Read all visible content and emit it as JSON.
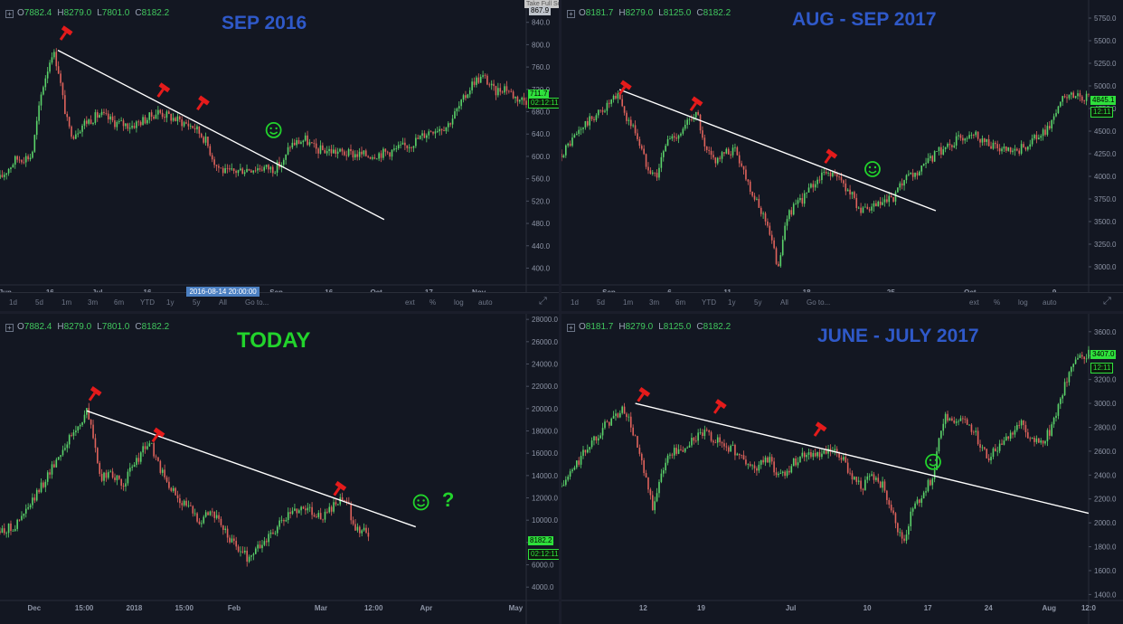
{
  "window_hint": "Take Full Screenshot [Alt-C]",
  "colors": {
    "up": "#5bd36a",
    "down": "#e0635c",
    "trend": "#ffffff",
    "title_blue": "#2f59c9",
    "title_green": "#22d32c",
    "smiley": "#22d32c",
    "hammer": "#e51b1b",
    "axis_text": "#8d94a5"
  },
  "timeframes": [
    "1d",
    "5d",
    "1m",
    "3m",
    "6m",
    "YTD",
    "1y",
    "5y",
    "All",
    "Go to..."
  ],
  "controls": [
    "ext",
    "%",
    "log",
    "auto"
  ],
  "chart_data": [
    {
      "type": "candlestick",
      "panel": "top-left",
      "title": "SEP 2016",
      "ohlc": {
        "o": "7882.4",
        "h": "8279.0",
        "l": "7801.0",
        "c": "8182.2"
      },
      "ylim": [
        370,
        880
      ],
      "yticks": [
        {
          "v": 400,
          "t": "400.0"
        },
        {
          "v": 440,
          "t": "440.0"
        },
        {
          "v": 480,
          "t": "480.0"
        },
        {
          "v": 520,
          "t": "520.0"
        },
        {
          "v": 560,
          "t": "560.0"
        },
        {
          "v": 600,
          "t": "600.0"
        },
        {
          "v": 640,
          "t": "640.0"
        },
        {
          "v": 680,
          "t": "680.0"
        },
        {
          "v": 720,
          "t": "720.0"
        },
        {
          "v": 760,
          "t": "760.0"
        },
        {
          "v": 800,
          "t": "800.0"
        },
        {
          "v": 840,
          "t": "840.0"
        }
      ],
      "xlim": [
        0,
        100
      ],
      "xticks": [
        {
          "x": 1,
          "t": "Jun"
        },
        {
          "x": 9.5,
          "t": "16"
        },
        {
          "x": 18.5,
          "t": "Jul"
        },
        {
          "x": 28,
          "t": "16"
        },
        {
          "x": 52.5,
          "t": "Sep"
        },
        {
          "x": 62.5,
          "t": "16"
        },
        {
          "x": 71.5,
          "t": "Oct"
        },
        {
          "x": 81.5,
          "t": "17"
        },
        {
          "x": 91,
          "t": "Nov"
        }
      ],
      "cursor_date": {
        "x": 42,
        "t": "2016-08-14 20:00:00"
      },
      "price_tags": [
        {
          "v": 711,
          "t": "711.7",
          "dark": false
        },
        {
          "v": 697,
          "t": "02:12:11",
          "dark": true
        }
      ],
      "top_tag": {
        "t": "867.9"
      },
      "path": [
        [
          0,
          560
        ],
        [
          3,
          595
        ],
        [
          6,
          600
        ],
        [
          8,
          720
        ],
        [
          10,
          790
        ],
        [
          11,
          760
        ],
        [
          12,
          700
        ],
        [
          13,
          650
        ],
        [
          14,
          640
        ],
        [
          16,
          660
        ],
        [
          19,
          675
        ],
        [
          22,
          660
        ],
        [
          25,
          655
        ],
        [
          28,
          668
        ],
        [
          30,
          680
        ],
        [
          32,
          672
        ],
        [
          35,
          660
        ],
        [
          37,
          652
        ],
        [
          39,
          630
        ],
        [
          41,
          585
        ],
        [
          43,
          570
        ],
        [
          47,
          578
        ],
        [
          50,
          580
        ],
        [
          52,
          578
        ],
        [
          54,
          590
        ],
        [
          55,
          620
        ],
        [
          58,
          630
        ],
        [
          60,
          612
        ],
        [
          63,
          610
        ],
        [
          66,
          605
        ],
        [
          70,
          602
        ],
        [
          74,
          608
        ],
        [
          78,
          622
        ],
        [
          82,
          648
        ],
        [
          85,
          655
        ],
        [
          88,
          700
        ],
        [
          90,
          735
        ],
        [
          92,
          742
        ],
        [
          94,
          715
        ],
        [
          96,
          725
        ],
        [
          98,
          705
        ],
        [
          100,
          700
        ]
      ],
      "trendline": [
        [
          11,
          790
        ],
        [
          73,
          487
        ]
      ],
      "hammers": [
        [
          12.5,
          822
        ],
        [
          31,
          720
        ],
        [
          38.5,
          697
        ]
      ],
      "smileys": [
        [
          52,
          647
        ]
      ]
    },
    {
      "type": "candlestick",
      "panel": "top-right",
      "title": "AUG - SEP 2017",
      "ohlc": {
        "o": "8181.7",
        "h": "8279.0",
        "l": "8125.0",
        "c": "8182.2"
      },
      "ylim": [
        2800,
        5950
      ],
      "yticks": [
        {
          "v": 3000,
          "t": "3000.0"
        },
        {
          "v": 3250,
          "t": "3250.0"
        },
        {
          "v": 3500,
          "t": "3500.0"
        },
        {
          "v": 3750,
          "t": "3750.0"
        },
        {
          "v": 4000,
          "t": "4000.0"
        },
        {
          "v": 4250,
          "t": "4250.0"
        },
        {
          "v": 4500,
          "t": "4500.0"
        },
        {
          "v": 4750,
          "t": "4750.0"
        },
        {
          "v": 5000,
          "t": "5000.0"
        },
        {
          "v": 5250,
          "t": "5250.0"
        },
        {
          "v": 5500,
          "t": "5500.0"
        },
        {
          "v": 5750,
          "t": "5750.0"
        }
      ],
      "xlim": [
        0,
        100
      ],
      "xticks": [
        {
          "x": 9,
          "t": "Sep"
        },
        {
          "x": 20.5,
          "t": "6"
        },
        {
          "x": 31.5,
          "t": "11"
        },
        {
          "x": 46.5,
          "t": "18"
        },
        {
          "x": 62.5,
          "t": "25"
        },
        {
          "x": 77.5,
          "t": "Oct"
        },
        {
          "x": 93.5,
          "t": "9"
        }
      ],
      "price_tags": [
        {
          "v": 4845,
          "t": "4845.1",
          "dark": false
        },
        {
          "v": 4720,
          "t": "12:11",
          "dark": true
        }
      ],
      "path": [
        [
          0,
          4250
        ],
        [
          4,
          4550
        ],
        [
          8,
          4750
        ],
        [
          11,
          4900
        ],
        [
          12,
          4680
        ],
        [
          14,
          4500
        ],
        [
          16,
          4150
        ],
        [
          18,
          4000
        ],
        [
          20,
          4400
        ],
        [
          23,
          4500
        ],
        [
          25,
          4700
        ],
        [
          26,
          4650
        ],
        [
          27,
          4300
        ],
        [
          29,
          4180
        ],
        [
          31,
          4250
        ],
        [
          33,
          4300
        ],
        [
          35,
          4000
        ],
        [
          37,
          3700
        ],
        [
          39,
          3500
        ],
        [
          40,
          3250
        ],
        [
          41,
          3000
        ],
        [
          43,
          3600
        ],
        [
          45,
          3700
        ],
        [
          47,
          3850
        ],
        [
          49,
          4000
        ],
        [
          51,
          4050
        ],
        [
          53,
          3950
        ],
        [
          55,
          3800
        ],
        [
          57,
          3600
        ],
        [
          59,
          3650
        ],
        [
          61,
          3700
        ],
        [
          63,
          3750
        ],
        [
          65,
          3950
        ],
        [
          68,
          4050
        ],
        [
          71,
          4250
        ],
        [
          75,
          4400
        ],
        [
          78,
          4500
        ],
        [
          80,
          4400
        ],
        [
          83,
          4300
        ],
        [
          86,
          4250
        ],
        [
          89,
          4380
        ],
        [
          92,
          4500
        ],
        [
          95,
          4850
        ],
        [
          98,
          4900
        ],
        [
          100,
          4850
        ]
      ],
      "trendline": [
        [
          11,
          4960
        ],
        [
          71,
          3620
        ]
      ],
      "hammers": [
        [
          12,
          4990
        ],
        [
          25.5,
          4810
        ],
        [
          51,
          4230
        ]
      ],
      "smileys": [
        [
          59,
          4080
        ]
      ]
    },
    {
      "type": "candlestick",
      "panel": "bottom-left",
      "title": "TODAY",
      "ohlc": {
        "o": "7882.4",
        "h": "8279.0",
        "l": "7801.0",
        "c": "8182.2"
      },
      "ylim": [
        2800,
        28500
      ],
      "yticks": [
        {
          "v": 4000,
          "t": "4000.0"
        },
        {
          "v": 6000,
          "t": "6000.0"
        },
        {
          "v": 8000,
          "t": "8000.0"
        },
        {
          "v": 10000,
          "t": "10000.0"
        },
        {
          "v": 12000,
          "t": "12000.0"
        },
        {
          "v": 14000,
          "t": "14000.0"
        },
        {
          "v": 16000,
          "t": "16000.0"
        },
        {
          "v": 18000,
          "t": "18000.0"
        },
        {
          "v": 20000,
          "t": "20000.0"
        },
        {
          "v": 22000,
          "t": "22000.0"
        },
        {
          "v": 24000,
          "t": "24000.0"
        },
        {
          "v": 26000,
          "t": "26000.0"
        },
        {
          "v": 28000,
          "t": "28000.0"
        }
      ],
      "xlim": [
        0,
        100
      ],
      "xticks": [
        {
          "x": 6.5,
          "t": "Dec"
        },
        {
          "x": 16,
          "t": "15:00"
        },
        {
          "x": 25.5,
          "t": "2018"
        },
        {
          "x": 35,
          "t": "15:00"
        },
        {
          "x": 44.5,
          "t": "Feb"
        },
        {
          "x": 61,
          "t": "Mar"
        },
        {
          "x": 71,
          "t": "12:00"
        },
        {
          "x": 81,
          "t": "Apr"
        },
        {
          "x": 98,
          "t": "May"
        }
      ],
      "price_tags": [
        {
          "v": 8182,
          "t": "8182.2",
          "dark": false
        },
        {
          "v": 7000,
          "t": "02:12:11",
          "dark": true
        }
      ],
      "path": [
        [
          0,
          9000
        ],
        [
          3,
          9500
        ],
        [
          6,
          11500
        ],
        [
          9,
          14000
        ],
        [
          12,
          16500
        ],
        [
          15,
          18500
        ],
        [
          16.5,
          19800
        ],
        [
          18,
          17000
        ],
        [
          19,
          13500
        ],
        [
          21,
          14500
        ],
        [
          23,
          13000
        ],
        [
          25,
          14500
        ],
        [
          27,
          16200
        ],
        [
          28.5,
          17000
        ],
        [
          30,
          15000
        ],
        [
          32,
          13000
        ],
        [
          34,
          12000
        ],
        [
          36,
          11000
        ],
        [
          38,
          10000
        ],
        [
          40,
          11000
        ],
        [
          42,
          9500
        ],
        [
          44,
          8000
        ],
        [
          46,
          7200
        ],
        [
          47,
          6600
        ],
        [
          49,
          7500
        ],
        [
          51,
          8500
        ],
        [
          53,
          9500
        ],
        [
          55,
          10500
        ],
        [
          57,
          11200
        ],
        [
          59,
          11000
        ],
        [
          61,
          10200
        ],
        [
          63,
          11000
        ],
        [
          65,
          11800
        ],
        [
          66,
          11500
        ],
        [
          67,
          10000
        ],
        [
          68,
          9000
        ],
        [
          69,
          9500
        ],
        [
          70,
          8500
        ]
      ],
      "trendline": [
        [
          16.5,
          19800
        ],
        [
          79,
          9400
        ]
      ],
      "hammers": [
        [
          18,
          21400
        ],
        [
          30,
          17700
        ],
        [
          64.5,
          12900
        ]
      ],
      "smileys": [
        [
          80,
          11600
        ]
      ],
      "question": {
        "x": 84,
        "v": 11900,
        "t": "?"
      }
    },
    {
      "type": "candlestick",
      "panel": "bottom-right",
      "title": "JUNE - JULY 2017",
      "ohlc": {
        "o": "8181.7",
        "h": "8279.0",
        "l": "8125.0",
        "c": "8182.2"
      },
      "ylim": [
        1350,
        3750
      ],
      "yticks": [
        {
          "v": 1400,
          "t": "1400.0"
        },
        {
          "v": 1600,
          "t": "1600.0"
        },
        {
          "v": 1800,
          "t": "1800.0"
        },
        {
          "v": 2000,
          "t": "2000.0"
        },
        {
          "v": 2200,
          "t": "2200.0"
        },
        {
          "v": 2400,
          "t": "2400.0"
        },
        {
          "v": 2600,
          "t": "2600.0"
        },
        {
          "v": 2800,
          "t": "2800.0"
        },
        {
          "v": 3000,
          "t": "3000.0"
        },
        {
          "v": 3200,
          "t": "3200.0"
        },
        {
          "v": 3400,
          "t": "3400.0"
        },
        {
          "v": 3600,
          "t": "3600.0"
        }
      ],
      "xlim": [
        0,
        100
      ],
      "xticks": [
        {
          "x": 15.5,
          "t": "12"
        },
        {
          "x": 26.5,
          "t": "19"
        },
        {
          "x": 43.5,
          "t": "Jul"
        },
        {
          "x": 58,
          "t": "10"
        },
        {
          "x": 69.5,
          "t": "17"
        },
        {
          "x": 81,
          "t": "24"
        },
        {
          "x": 92.5,
          "t": "Aug"
        },
        {
          "x": 100,
          "t": "12:0"
        }
      ],
      "price_tags": [
        {
          "v": 3407,
          "t": "3407.0",
          "dark": false
        },
        {
          "v": 3300,
          "t": "12:11",
          "dark": true
        }
      ],
      "path": [
        [
          0,
          2300
        ],
        [
          3,
          2500
        ],
        [
          6,
          2700
        ],
        [
          9,
          2850
        ],
        [
          12,
          2950
        ],
        [
          14,
          2700
        ],
        [
          16,
          2350
        ],
        [
          17.5,
          2100
        ],
        [
          19,
          2450
        ],
        [
          21,
          2600
        ],
        [
          23,
          2600
        ],
        [
          25,
          2700
        ],
        [
          27,
          2750
        ],
        [
          29,
          2700
        ],
        [
          31,
          2650
        ],
        [
          33,
          2600
        ],
        [
          35,
          2500
        ],
        [
          37,
          2450
        ],
        [
          39,
          2550
        ],
        [
          41,
          2400
        ],
        [
          43,
          2450
        ],
        [
          45,
          2550
        ],
        [
          47,
          2600
        ],
        [
          49,
          2550
        ],
        [
          51,
          2600
        ],
        [
          53,
          2550
        ],
        [
          55,
          2400
        ],
        [
          57,
          2300
        ],
        [
          59,
          2400
        ],
        [
          61,
          2300
        ],
        [
          63,
          2100
        ],
        [
          64,
          1900
        ],
        [
          65,
          1850
        ],
        [
          66.5,
          2100
        ],
        [
          68,
          2200
        ],
        [
          70,
          2350
        ],
        [
          71,
          2500
        ],
        [
          72,
          2800
        ],
        [
          73,
          2900
        ],
        [
          75,
          2850
        ],
        [
          77,
          2850
        ],
        [
          79,
          2700
        ],
        [
          81,
          2550
        ],
        [
          83,
          2650
        ],
        [
          85,
          2750
        ],
        [
          87,
          2850
        ],
        [
          89,
          2700
        ],
        [
          91,
          2650
        ],
        [
          93,
          2800
        ],
        [
          95,
          3100
        ],
        [
          97,
          3300
        ],
        [
          99,
          3400
        ],
        [
          100,
          3420
        ]
      ],
      "trendline": [
        [
          14,
          3000
        ],
        [
          100,
          2080
        ]
      ],
      "hammers": [
        [
          15.5,
          3080
        ],
        [
          30,
          2980
        ],
        [
          49,
          2790
        ]
      ],
      "smileys": [
        [
          70.5,
          2510
        ]
      ]
    }
  ]
}
